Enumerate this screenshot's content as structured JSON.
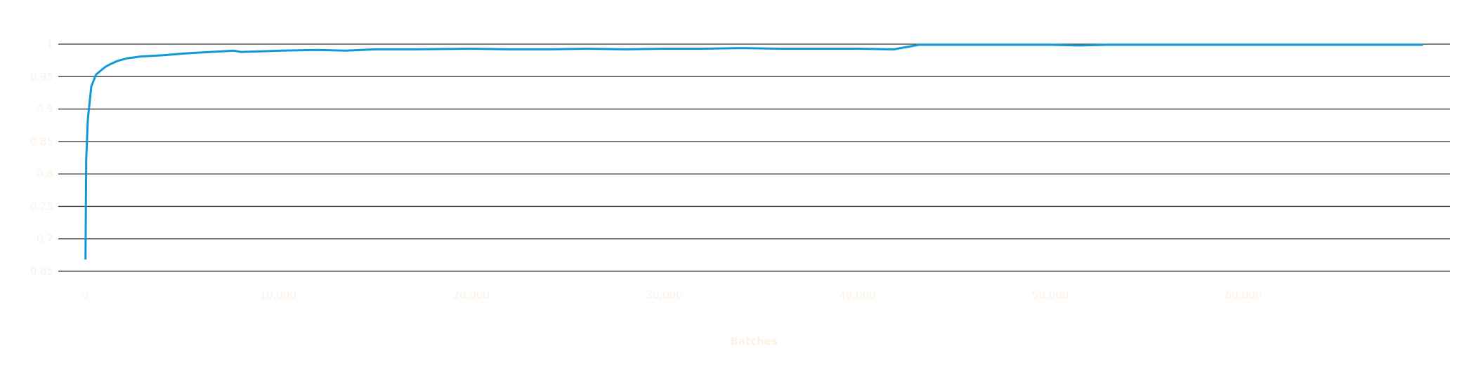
{
  "chart_data": {
    "type": "line",
    "title": "",
    "xlabel": "Batches",
    "ylabel": "",
    "xlim": [
      0,
      69300
    ],
    "ylim": [
      0.65,
      1
    ],
    "grid": true,
    "x_ticks": [
      0,
      10000,
      20000,
      30000,
      40000,
      50000,
      60000
    ],
    "x_tick_labels": [
      "0",
      "10,000",
      "20,000",
      "30,000",
      "40,000",
      "50,000",
      "60,000"
    ],
    "y_ticks": [
      0.65,
      0.7,
      0.75,
      0.8,
      0.85,
      0.9,
      0.95,
      1
    ],
    "y_tick_labels": [
      "0.65",
      "0.7",
      "0.75",
      "0.8",
      "0.85",
      "0.9",
      "0.95",
      "1"
    ],
    "colors": {
      "line": "#0e9ad8",
      "grid": "#333333",
      "ticks": "#fdf1e6"
    },
    "series": [
      {
        "x": [
          25,
          62,
          146,
          328,
          571,
          800,
          1055,
          1300,
          1663,
          2147,
          2875,
          4076,
          5302,
          6500,
          7715,
          8079,
          10153,
          12000,
          13500,
          15000,
          17000,
          20000,
          22000,
          24000,
          26000,
          28000,
          30000,
          32000,
          34000,
          36000,
          38000,
          40000,
          41900,
          43200,
          46000,
          50000,
          51500,
          53000,
          57000,
          62000,
          66000,
          69300
        ],
        "y": [
          0.668,
          0.821,
          0.884,
          0.935,
          0.953,
          0.959,
          0.965,
          0.969,
          0.974,
          0.978,
          0.981,
          0.983,
          0.986,
          0.988,
          0.99,
          0.988,
          0.99,
          0.991,
          0.99,
          0.992,
          0.992,
          0.993,
          0.992,
          0.992,
          0.993,
          0.992,
          0.993,
          0.993,
          0.994,
          0.993,
          0.993,
          0.993,
          0.992,
          0.999,
          0.999,
          0.999,
          0.998,
          0.999,
          0.999,
          0.999,
          0.999,
          0.999
        ]
      }
    ]
  }
}
